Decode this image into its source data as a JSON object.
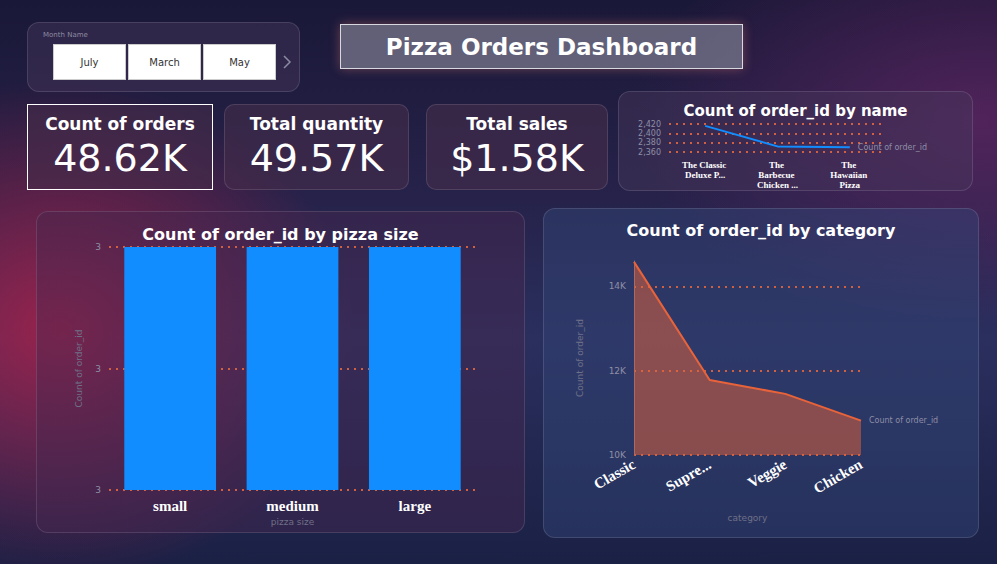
{
  "title": "Pizza Orders Dashboard",
  "slicer": {
    "label": "Month Name",
    "items": [
      "July",
      "March",
      "May"
    ]
  },
  "kpis": [
    {
      "label": "Count of orders",
      "value": "48.62K"
    },
    {
      "label": "Total quantity",
      "value": "49.57K"
    },
    {
      "label": "Total sales",
      "value": "$1.58K"
    }
  ],
  "chart_data": [
    {
      "type": "line",
      "title": "Count of order_id by name",
      "categories": [
        "The Classic Deluxe P...",
        "The Barbecue Chicken ...",
        "The Hawaiian Pizza"
      ],
      "series": [
        {
          "name": "Count of order_id",
          "color": "#118dff",
          "values": [
            2416,
            2372,
            2370
          ]
        }
      ],
      "ylim": [
        2360,
        2420
      ],
      "yticks": [
        {
          "value": 2360,
          "label": "2,360"
        },
        {
          "value": 2380,
          "label": "2,380"
        },
        {
          "value": 2400,
          "label": "2,400"
        },
        {
          "value": 2420,
          "label": "2,420"
        }
      ],
      "grid": true
    },
    {
      "type": "bar",
      "title": "Count of order_id by pizza size",
      "categories": [
        "small",
        "medium",
        "large"
      ],
      "values": [
        3.4,
        3.4,
        3.4
      ],
      "color": "#118dff",
      "ylim": [
        2.6,
        3.4
      ],
      "yticks": [
        {
          "value": 2.6,
          "label": "3"
        },
        {
          "value": 3,
          "label": "3"
        },
        {
          "value": 3.4,
          "label": "3"
        }
      ],
      "grid": true,
      "xlabel": "pizza size",
      "ylabel": "Count of order_id"
    },
    {
      "type": "area",
      "title": "Count of order_id by category",
      "categories": [
        "Classic",
        "Supre...",
        "Veggie",
        "Chicken"
      ],
      "series": [
        {
          "name": "Count of order_id",
          "color": "#e8633a",
          "values": [
            14579,
            11777,
            11449,
            10815
          ]
        }
      ],
      "ylim": [
        10000,
        14600
      ],
      "yticks": [
        {
          "value": 10000,
          "label": "10K"
        },
        {
          "value": 12000,
          "label": "12K"
        },
        {
          "value": 14000,
          "label": "14K"
        }
      ],
      "grid": true,
      "xlabel": "category",
      "ylabel": "Count of order_id"
    }
  ]
}
